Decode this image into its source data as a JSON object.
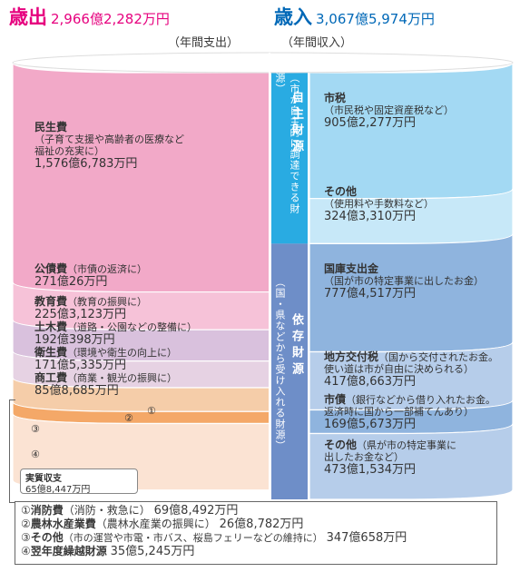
{
  "header": {
    "exp_title": "歳出",
    "exp_total": "2,966億2,282万円",
    "exp_sub": "（年間支出）",
    "rev_title": "歳入",
    "rev_total": "3,067億5,974万円",
    "rev_sub": "（年間収入）"
  },
  "groups": {
    "own_title": "自主財源",
    "own_desc": "（市が自主的に調達できる財源）",
    "dep_title": "依存財源",
    "dep_desc": "（国・県などから受け入れる財源）"
  },
  "expenditure": [
    {
      "name": "民生費",
      "desc1": "（子育て支援や高齢者の医療など",
      "desc2": "福祉の充実に）",
      "amount": "1,576億6,783万円",
      "color": "#f2a9c8"
    },
    {
      "name": "公債費",
      "desc1": "（市債の返済に）",
      "desc2": "",
      "amount": "271億26万円",
      "color": "#f6c2d8"
    },
    {
      "name": "教育費",
      "desc1": "（教育の振興に）",
      "desc2": "",
      "amount": "225億3,123万円",
      "color": "#d9c1dd"
    },
    {
      "name": "土木費",
      "desc1": "（道路・公園などの整備に）",
      "desc2": "",
      "amount": "192億398万円",
      "color": "#e6d2e3"
    },
    {
      "name": "衛生費",
      "desc1": "（環境や衛生の向上に）",
      "desc2": "",
      "amount": "171億5,335万円",
      "color": "#f5cda9"
    },
    {
      "name": "商工費",
      "desc1": "（商業・観光の振興に）",
      "desc2": "",
      "amount": "85億8,685万円",
      "color": "#f4a868"
    },
    {
      "name": "その他",
      "desc1": "",
      "desc2": "",
      "amount": "",
      "color": "#fbe3d3"
    }
  ],
  "revenue": [
    {
      "name": "市税",
      "desc1": "（市民税や固定資産税など）",
      "desc2": "",
      "amount": "905億2,277万円",
      "color": "#a3d9f3"
    },
    {
      "name": "その他",
      "desc1": "（使用料や手数料など）",
      "desc2": "",
      "amount": "324億3,310万円",
      "color": "#c7e8f8"
    },
    {
      "name": "国庫支出金",
      "desc1": "（国が市の特定事業に出したお金）",
      "desc2": "",
      "amount": "777億4,517万円",
      "color": "#8fb4de"
    },
    {
      "name": "地方交付税",
      "desc1": "（国から交付されたお金。",
      "desc2": "使い道は市が自由に決められる）",
      "amount": "417億8,663万円",
      "color": "#b6cdea"
    },
    {
      "name": "市債",
      "desc1": "（銀行などから借り入れたお金。",
      "desc2": "返済時に国から一部補てんあり）",
      "amount": "169億5,673万円",
      "color": "#8fb4de"
    },
    {
      "name": "その他",
      "desc1": "（県が市の特定事業に",
      "desc2": "出したお金など）",
      "amount": "473億1,534万円",
      "color": "#b6cdea"
    }
  ],
  "balance": {
    "label": "実質収支",
    "amount": "65億8,447万円"
  },
  "markers": [
    "①",
    "②",
    "③",
    "④"
  ],
  "legend": [
    {
      "num": "①",
      "name": "消防費",
      "desc": "（消防・救急に）",
      "amount": "69億8,492万円"
    },
    {
      "num": "②",
      "name": "農林水産業費",
      "desc": "（農林水産業の振興に）",
      "amount": "26億8,782万円"
    },
    {
      "num": "③",
      "name": "その他",
      "desc": "（市の運営や市電・市バス、桜島フェリーなどの維持に）",
      "amount": "347億658万円"
    },
    {
      "num": "④",
      "name": "翌年度繰越財源",
      "desc": "",
      "amount": "35億5,245万円"
    }
  ],
  "colors": {
    "exp_header": "#e6007e",
    "rev_header": "#0068b7",
    "own_band": "#29abe2",
    "dep_band": "#6e8ec8"
  },
  "chart_data": {
    "type": "bar",
    "series": [
      {
        "values": [
          1576.6783,
          271.0026,
          225.3123,
          192.0398,
          171.5335,
          85.8685,
          69.8492,
          26.8782,
          347.0658,
          35.5245
        ]
      },
      {
        "values": [
          905.2277,
          324.331,
          777.4517,
          417.8663,
          169.5673,
          473.1534
        ]
      }
    ],
    "categories_expenditure": [
      "民生費",
      "公債費",
      "教育費",
      "土木費",
      "衛生費",
      "商工費",
      "消防費",
      "農林水産業費",
      "その他",
      "翌年度繰越財源"
    ],
    "categories_revenue": [
      "市税",
      "その他",
      "国庫支出金",
      "地方交付税",
      "市債",
      "その他"
    ],
    "unit": "億円",
    "balance": 65.8447
  }
}
